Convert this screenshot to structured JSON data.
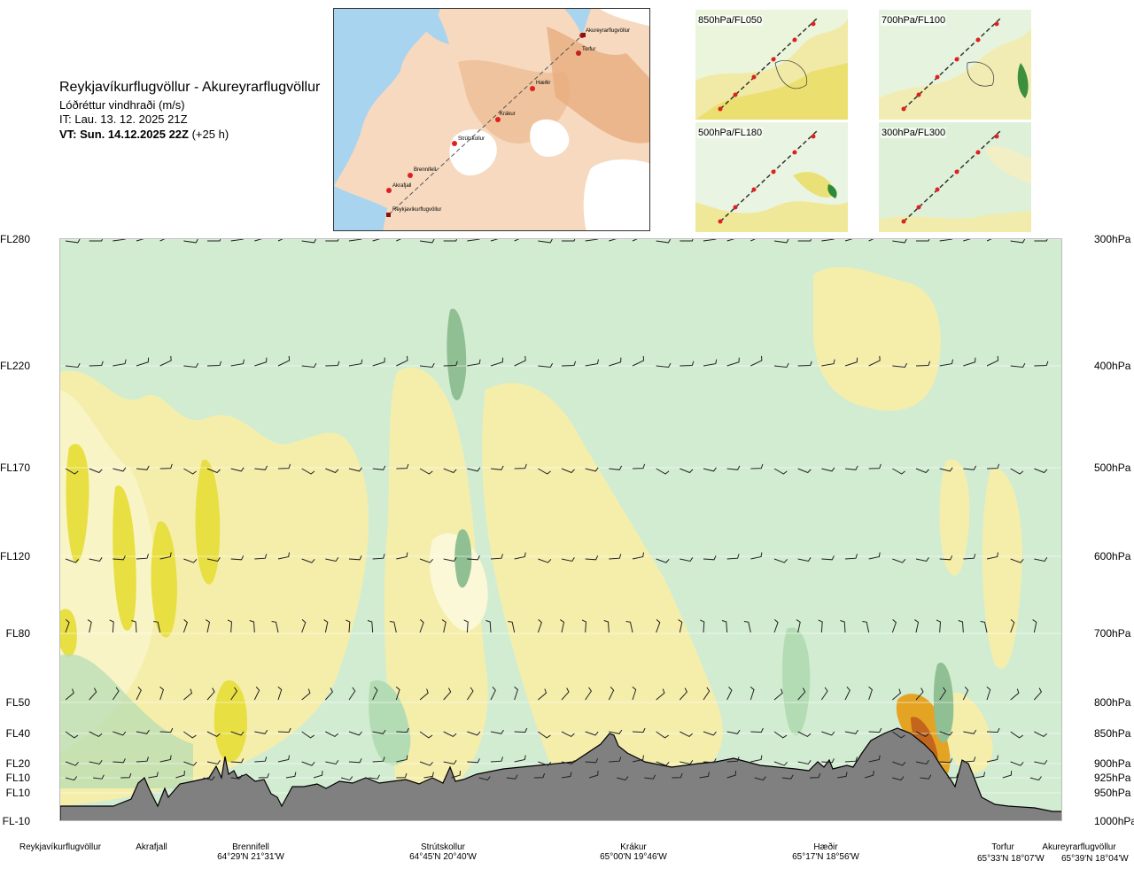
{
  "header": {
    "route": "Reykjavíkurflugvöllur - Akureyrarflugvöllur",
    "variable": "Lóðréttur vindhraði (m/s)",
    "issue_time": "IT: Lau. 13. 12. 2025 21Z",
    "valid_time": "VT: Sun. 14.12.2025 22Z",
    "lead_time": "(+25 h)"
  },
  "map": {
    "places": [
      {
        "name": "Akureyrarflugvöllur"
      },
      {
        "name": "Torfur"
      },
      {
        "name": "Hæðir"
      },
      {
        "name": "Krákur"
      },
      {
        "name": "Strútskollur"
      },
      {
        "name": "Brennifell"
      },
      {
        "name": "Akrafjall"
      },
      {
        "name": "Reykjavíkurflugvöllur"
      }
    ]
  },
  "thumbnails": [
    {
      "label": "850hPa/FL050"
    },
    {
      "label": "700hPa/FL100"
    },
    {
      "label": "500hPa/FL180"
    },
    {
      "label": "300hPa/FL300"
    }
  ],
  "chart_data": {
    "type": "heatmap",
    "title": "Reykjavíkurflugvöllur - Akureyrarflugvöllur",
    "subtitle": "Lóðréttur vindhraði (m/s)",
    "levels": [
      {
        "fl": "FL280",
        "hpa": "300hPa"
      },
      {
        "fl": "FL220",
        "hpa": "400hPa"
      },
      {
        "fl": "FL170",
        "hpa": "500hPa"
      },
      {
        "fl": "FL120",
        "hpa": "600hPa"
      },
      {
        "fl": "FL80",
        "hpa": "700hPa"
      },
      {
        "fl": "FL50",
        "hpa": "800hPa"
      },
      {
        "fl": "FL40",
        "hpa": "850hPa"
      },
      {
        "fl": "FL20",
        "hpa": "900hPa"
      },
      {
        "fl": "FL10",
        "hpa": "925hPa"
      },
      {
        "fl": "FL10",
        "hpa": "950hPa"
      },
      {
        "fl": "FL-10",
        "hpa": "1000hPa"
      }
    ],
    "pressure_hpa": [
      300,
      400,
      500,
      600,
      700,
      800,
      850,
      900,
      925,
      950,
      1000
    ],
    "locations": [
      {
        "name": "Reykjavíkurflugvöllur",
        "coord": ""
      },
      {
        "name": "Akrafjall",
        "coord": ""
      },
      {
        "name": "Brennifell",
        "coord": "64°29'N 21°31'W"
      },
      {
        "name": "Strútskollur",
        "coord": "64°45'N 20°40'W"
      },
      {
        "name": "Krákur",
        "coord": "65°00'N 19°46'W"
      },
      {
        "name": "Hæðir",
        "coord": "65°17'N 18°56'W"
      },
      {
        "name": "Torfur",
        "coord": "65°33'N 18°07'W"
      },
      {
        "name": "Akureyrarflugvöllur",
        "coord": "65°39'N 18°04'W"
      }
    ],
    "colors": {
      "strong_sink": "#8fbf93",
      "sink": "#b4dcb4",
      "weak_sink": "#d2ecd2",
      "near_zero_sink": "#eaf6e6",
      "near_zero_rise": "#fbf8d7",
      "weak_rise": "#f5eeaa",
      "rise": "#e8df42",
      "strong_rise": "#e5a323",
      "very_strong_rise": "#c3651c",
      "terrain": "#808080"
    }
  }
}
